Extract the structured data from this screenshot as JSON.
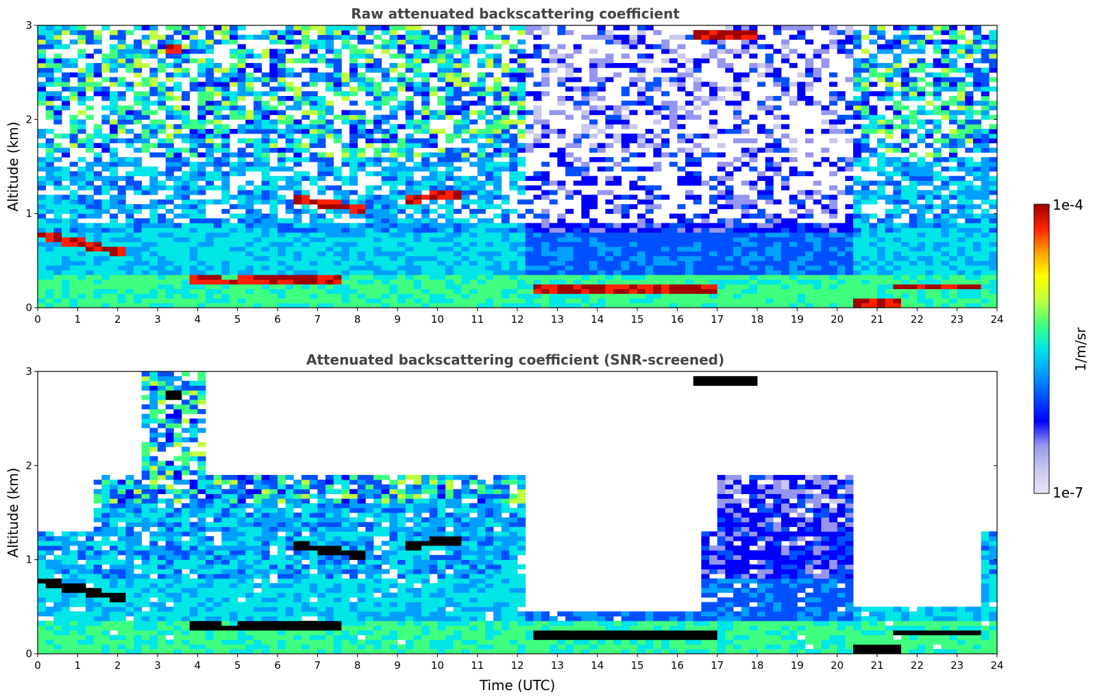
{
  "figure": {
    "time_label": "Time (UTC)"
  },
  "chart_data": [
    {
      "type": "heatmap",
      "title": "Raw attenuated backscattering coefficient",
      "xlabel": "",
      "ylabel": "Altitude (km)",
      "xlim": [
        0,
        24
      ],
      "ylim": [
        0,
        3
      ],
      "x_ticks": [
        "0",
        "1",
        "2",
        "3",
        "4",
        "5",
        "6",
        "7",
        "8",
        "9",
        "10",
        "11",
        "12",
        "13",
        "14",
        "15",
        "16",
        "17",
        "18",
        "19",
        "20",
        "21",
        "22",
        "23",
        "24"
      ],
      "y_ticks": [
        "0",
        "1",
        "2",
        "3"
      ],
      "screened": false,
      "layers": [
        {
          "kind": "cloud",
          "t0": 0.0,
          "t1": 2.2,
          "alt0": 0.78,
          "alt1": 0.58
        },
        {
          "kind": "cloud",
          "t0": 3.8,
          "t1": 5.0,
          "alt0": 0.3,
          "alt1": 0.27
        },
        {
          "kind": "cloud",
          "t0": 5.1,
          "t1": 7.5,
          "alt0": 0.28,
          "alt1": 0.3
        },
        {
          "kind": "cloud",
          "t0": 6.4,
          "t1": 8.2,
          "alt0": 1.15,
          "alt1": 1.05
        },
        {
          "kind": "cloud",
          "t0": 9.2,
          "t1": 10.6,
          "alt0": 1.15,
          "alt1": 1.22
        },
        {
          "kind": "cloud",
          "t0": 12.3,
          "t1": 17.0,
          "alt0": 0.22,
          "alt1": 0.18
        },
        {
          "kind": "cloud",
          "t0": 20.5,
          "t1": 21.5,
          "alt0": 0.05,
          "alt1": 0.05
        },
        {
          "kind": "cloud",
          "t0": 21.3,
          "t1": 23.6,
          "alt0": 0.22,
          "alt1": 0.22
        },
        {
          "kind": "cloud",
          "t0": 3.2,
          "t1": 3.6,
          "alt0": 2.75,
          "alt1": 2.75
        },
        {
          "kind": "cloud",
          "t0": 16.4,
          "t1": 17.9,
          "alt0": 2.9,
          "alt1": 2.9
        }
      ]
    },
    {
      "type": "heatmap",
      "title": "Attenuated backscattering coefficient (SNR-screened)",
      "xlabel": "Time (UTC)",
      "ylabel": "Altitude (km)",
      "xlim": [
        0,
        24
      ],
      "ylim": [
        0,
        3
      ],
      "x_ticks": [
        "0",
        "1",
        "2",
        "3",
        "4",
        "5",
        "6",
        "7",
        "8",
        "9",
        "10",
        "11",
        "12",
        "13",
        "14",
        "15",
        "16",
        "17",
        "18",
        "19",
        "20",
        "21",
        "22",
        "23",
        "24"
      ],
      "y_ticks": [
        "0",
        "1",
        "2",
        "3"
      ],
      "screened": true
    }
  ],
  "colorbar": {
    "label": "1/m/sr",
    "max_label": "1e-4",
    "min_label": "1e-7",
    "scale": "log",
    "range": [
      1e-07,
      0.0001
    ],
    "colors": [
      "#e6e6f5",
      "#c8c8f0",
      "#9696f0",
      "#0000ff",
      "#0050ff",
      "#00a0ff",
      "#00e6e6",
      "#40ff80",
      "#c0ff40",
      "#ffff00",
      "#ffa000",
      "#ff2000",
      "#a00000"
    ]
  }
}
